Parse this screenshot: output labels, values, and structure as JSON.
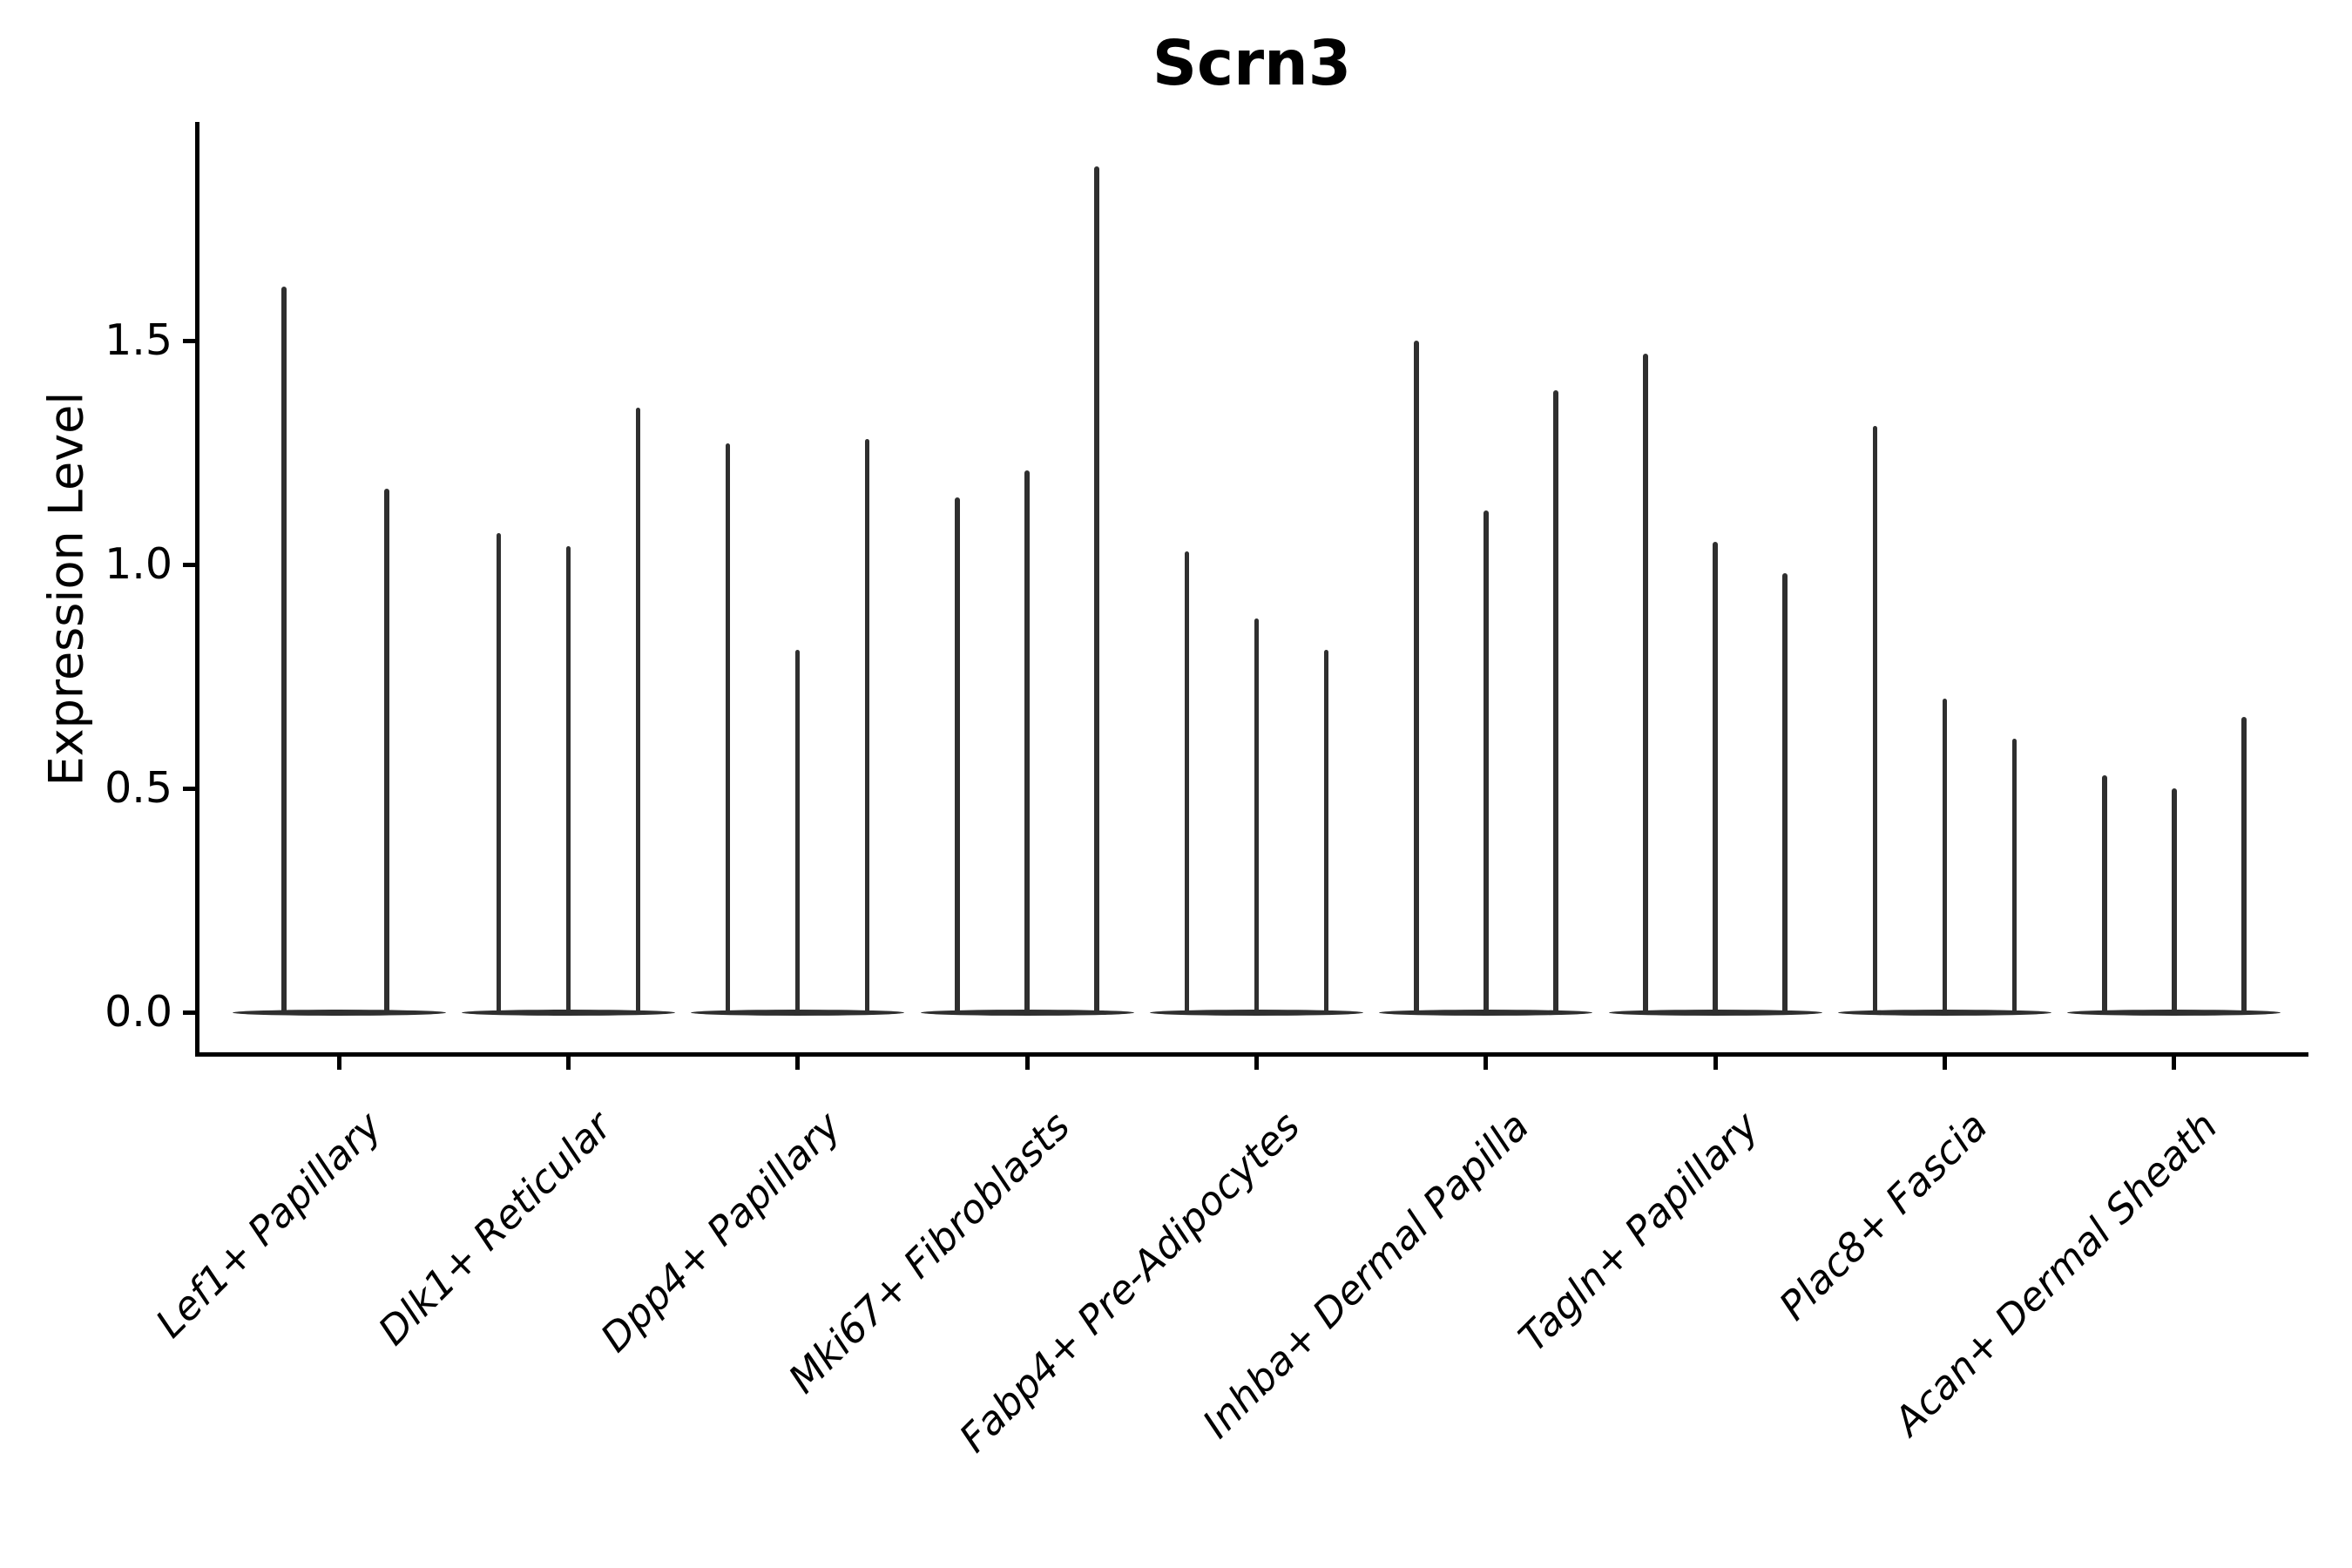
{
  "figure": {
    "background": "#ffffff",
    "axis_color": "#000000",
    "violin_color": "#2f2f2f"
  },
  "chart_data": {
    "type": "violin",
    "title": "Scrn3",
    "xlabel": "",
    "ylabel": "Expression Level",
    "yticks": [
      0.0,
      0.5,
      1.0,
      1.5
    ],
    "ylim": [
      -0.1,
      2.0
    ],
    "grid": false,
    "legend": "none",
    "style": "thin zero-inflated violins (flat base at 0 with narrow spike to max), 2-3 violins per category, dark gray on white, only left and bottom spines, x labels rotated 45deg italic",
    "categories": [
      "Lef1+ Papillary",
      "Dlk1+ Reticular",
      "Dpp4+ Papillary",
      "Mki67+ Fibroblasts",
      "Fabp4+ Pre-Adipocytes",
      "Inhba+ Dermal Papilla",
      "Tagln+ Papillary",
      "Plac8+ Fascia",
      "Acan+ Dermal Sheath"
    ],
    "series": [
      {
        "category": "Lef1+ Papillary",
        "violin_max_values": [
          1.62,
          1.17
        ]
      },
      {
        "category": "Dlk1+ Reticular",
        "violin_max_values": [
          1.07,
          1.04,
          1.35
        ]
      },
      {
        "category": "Dpp4+ Papillary",
        "violin_max_values": [
          1.27,
          0.81,
          1.28
        ]
      },
      {
        "category": "Mki67+ Fibroblasts",
        "violin_max_values": [
          1.15,
          1.21,
          1.89
        ]
      },
      {
        "category": "Fabp4+ Pre-Adipocytes",
        "violin_max_values": [
          1.03,
          0.88,
          0.81
        ]
      },
      {
        "category": "Inhba+ Dermal Papilla",
        "violin_max_values": [
          1.5,
          1.12,
          1.39
        ]
      },
      {
        "category": "Tagln+ Papillary",
        "violin_max_values": [
          1.47,
          1.05,
          0.98
        ]
      },
      {
        "category": "Plac8+ Fascia",
        "violin_max_values": [
          1.31,
          0.7,
          0.61
        ]
      },
      {
        "category": "Acan+ Dermal Sheath",
        "violin_max_values": [
          0.53,
          0.5,
          0.66
        ]
      }
    ]
  }
}
